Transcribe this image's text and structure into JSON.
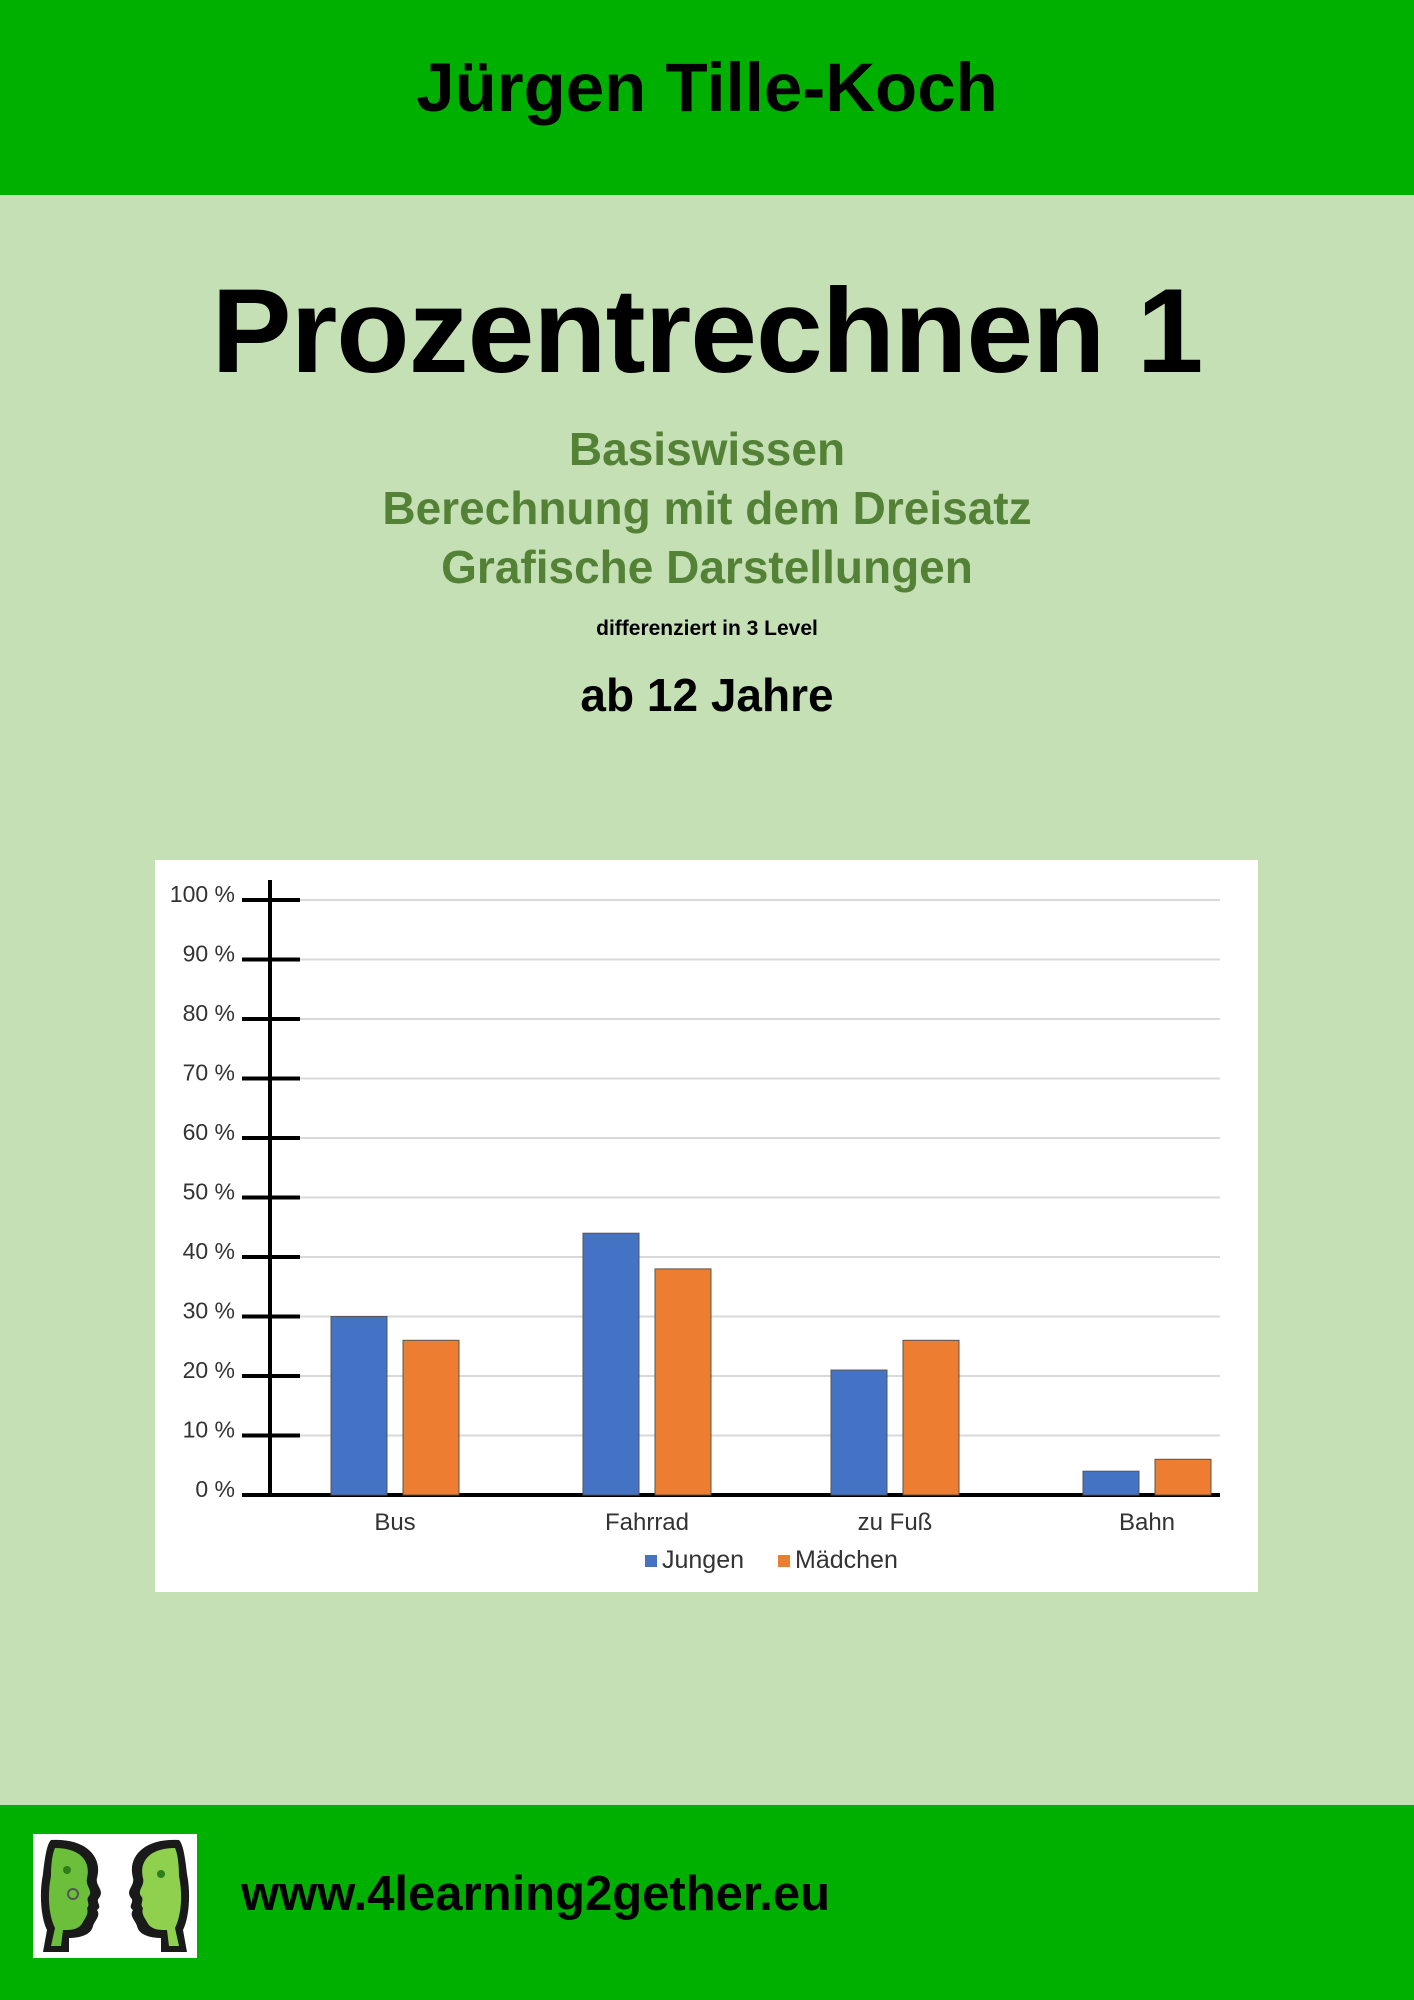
{
  "header": {
    "author": "Jürgen Tille-Koch"
  },
  "main": {
    "title": "Prozentrechnen 1",
    "subtitles": [
      "Basiswissen",
      "Berechnung mit dem Dreisatz",
      "Grafische Darstellungen"
    ],
    "level_note": "differenziert in 3 Level",
    "age": "ab 12 Jahre"
  },
  "colors": {
    "band_green": "#00b000",
    "page_green": "#c6e0b6",
    "subtitle_green": "#538135",
    "series_blue": "#4472c4",
    "series_orange": "#ed7d31"
  },
  "chart_data": {
    "type": "bar",
    "categories": [
      "Bus",
      "Fahrrad",
      "zu Fuß",
      "Bahn"
    ],
    "series": [
      {
        "name": "Jungen",
        "values": [
          30,
          44,
          21,
          4
        ]
      },
      {
        "name": "Mädchen",
        "values": [
          26,
          38,
          26,
          6
        ]
      }
    ],
    "y_ticks": [
      "0 %",
      "10 %",
      "20 %",
      "30 %",
      "40 %",
      "50 %",
      "60 %",
      "70 %",
      "80 %",
      "90 %",
      "100 %"
    ],
    "ylim": [
      0,
      100
    ],
    "grid": true,
    "legend": "bottom-center"
  },
  "footer": {
    "logo_icon": "two-faces-logo-icon",
    "website": "www.4learning2gether.eu"
  }
}
